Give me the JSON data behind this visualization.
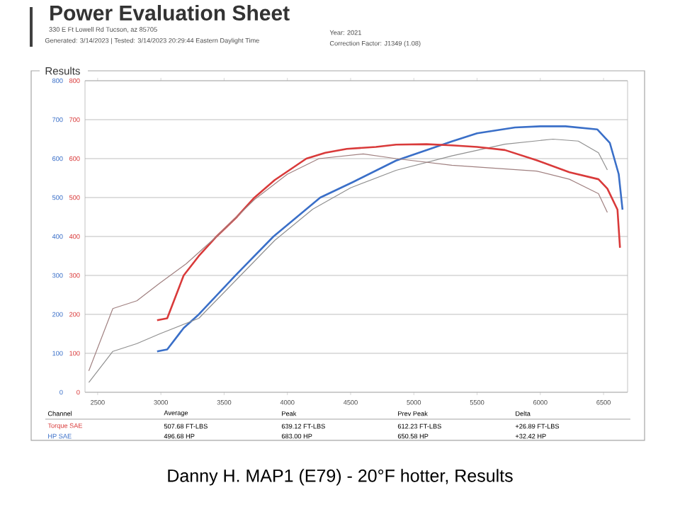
{
  "chart_data": {
    "type": "line",
    "title": "Power Evaluation Sheet",
    "subtitle": "330 E Ft Lowell Rd Tucson, az 85705",
    "xlim": [
      2400,
      6690
    ],
    "xticks": [
      2500,
      3000,
      3500,
      4000,
      4500,
      5000,
      5500,
      6000,
      6500
    ],
    "ylim": [
      0,
      800
    ],
    "yticks": [
      0,
      100,
      200,
      300,
      400,
      500,
      600,
      700,
      800
    ],
    "y2lim": [
      0,
      800
    ],
    "y2ticks": [
      0,
      100,
      200,
      300,
      400,
      500,
      600,
      700,
      800
    ],
    "grid": "y",
    "series": [
      {
        "name": "Torque SAE",
        "color": "#d93a3a",
        "axis": "y2",
        "x": [
          2970,
          3050,
          3180,
          3300,
          3440,
          3600,
          3740,
          3900,
          4150,
          4300,
          4470,
          4700,
          4860,
          5100,
          5300,
          5500,
          5720,
          5970,
          6230,
          6460,
          6530,
          6610,
          6630
        ],
        "values": [
          185,
          190,
          300,
          350,
          400,
          450,
          500,
          545,
          600,
          615,
          625,
          630,
          636,
          637,
          634,
          630,
          622,
          596,
          565,
          547,
          523,
          469,
          371
        ]
      },
      {
        "name": "HP SAE",
        "color": "#3a6fc8",
        "x": [
          2970,
          3050,
          3180,
          3300,
          3590,
          3890,
          4260,
          4520,
          4860,
          5300,
          5500,
          5800,
          6000,
          6200,
          6450,
          6550,
          6620,
          6650
        ],
        "values": [
          105,
          110,
          165,
          200,
          300,
          400,
          500,
          540,
          595,
          644,
          665,
          680,
          683,
          683,
          675,
          640,
          560,
          469
        ]
      },
      {
        "color": "#a08080",
        "axis": "y2",
        "x": [
          2430,
          2620,
          2810,
          2990,
          3200,
          3440,
          3740,
          4000,
          4250,
          4600,
          4860,
          5300,
          5970,
          6230,
          6460,
          6530
        ],
        "values": [
          55,
          215,
          235,
          280,
          330,
          400,
          495,
          560,
          600,
          612,
          600,
          583,
          568,
          547,
          510,
          462
        ]
      },
      {
        "color": "#909090",
        "x": [
          2430,
          2620,
          2810,
          2990,
          3300,
          3600,
          3900,
          4200,
          4500,
          4860,
          5300,
          5720,
          6100,
          6300,
          6460,
          6530
        ],
        "values": [
          25,
          105,
          125,
          150,
          190,
          290,
          390,
          470,
          525,
          570,
          607,
          637,
          650,
          645,
          615,
          571
        ]
      }
    ],
    "annotations": [
      "Generated: 3/14/2023 | Tested: 3/14/2023 20:29:44 Eastern Daylight Time",
      "Year: 2021",
      "Correction Factor: J1349 (1.08)",
      "Results",
      "Channel",
      "Average",
      "Peak",
      "Prev Peak",
      "Delta",
      "507.68 FT-LBS",
      "639.12 FT-LBS",
      "612.23 FT-LBS",
      "+26.89 FT-LBS",
      "496.68 HP",
      "683.00 HP",
      "650.58 HP",
      "+32.42 HP",
      "Danny H. MAP1 (E79) - 20°F hotter, Results"
    ]
  }
}
